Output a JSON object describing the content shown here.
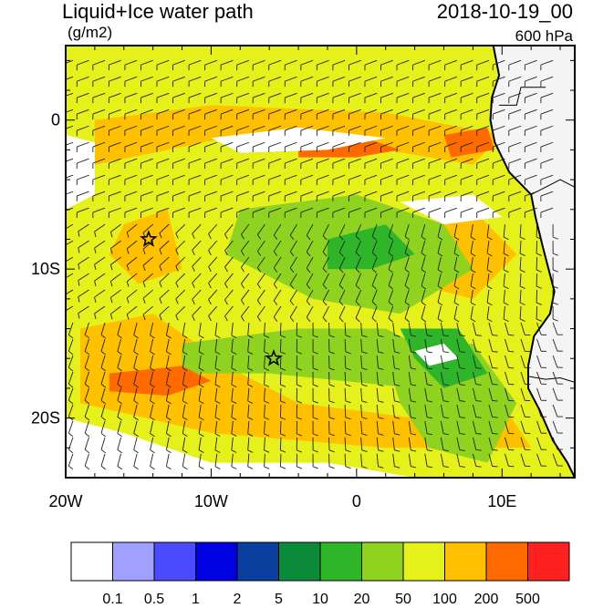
{
  "header": {
    "title": "Liquid+Ice water path",
    "units": "(g/m2)",
    "datetime": "2018-10-19_00",
    "level": "600 hPa"
  },
  "map": {
    "lon_range": [
      -20,
      15
    ],
    "lat_range": [
      -24,
      5
    ],
    "lon_ticks": [
      {
        "value": -20,
        "label": "20W"
      },
      {
        "value": -10,
        "label": "10W"
      },
      {
        "value": 0,
        "label": "0"
      },
      {
        "value": 10,
        "label": "10E"
      }
    ],
    "lat_ticks": [
      {
        "value": 0,
        "label": "0"
      },
      {
        "value": -10,
        "label": "10S"
      },
      {
        "value": -20,
        "label": "20S"
      }
    ],
    "markers": [
      {
        "name": "star-marker-1",
        "lon": -14.3,
        "lat": -8.0
      },
      {
        "name": "star-marker-2",
        "lon": -5.7,
        "lat": -16.0
      }
    ]
  },
  "colorbar": {
    "colors": [
      "#ffffff",
      "#a0a0ff",
      "#4a4aff",
      "#0000e0",
      "#0a3fa0",
      "#0b8a3a",
      "#2fb52a",
      "#8fd320",
      "#e6f01a",
      "#ffc000",
      "#ff6a00",
      "#ff2020"
    ],
    "labels": [
      "0.1",
      "0.5",
      "1",
      "2",
      "5",
      "10",
      "20",
      "50",
      "100",
      "200",
      "500"
    ]
  }
}
